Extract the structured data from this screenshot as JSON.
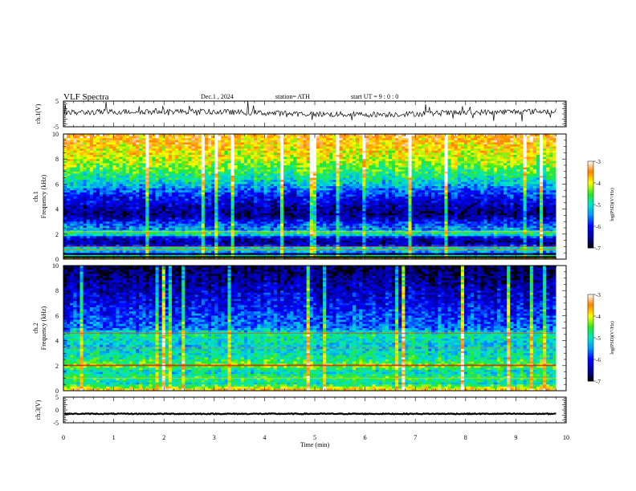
{
  "header": {
    "title": "VLF  Spectra",
    "date": "Dec.1  , 2024",
    "station": "station= ATH",
    "start_ut": "start  UT  =   9  : 0  : 0"
  },
  "chart_data": [
    {
      "type": "line",
      "name": "ch1-waveform",
      "ylabel": "ch.1(V)",
      "ylim": [
        -5,
        5
      ],
      "yticks": [
        5,
        -5
      ],
      "baseline": 0.4,
      "xlim": [
        0,
        10
      ],
      "data_end_min": 9.8
    },
    {
      "type": "heatmap",
      "name": "ch1-spectrogram",
      "ylabel_channel": "ch.1",
      "ylabel": "Frequency (kHz)",
      "ylim": [
        0,
        10
      ],
      "yticks": [
        0,
        2,
        4,
        6,
        8,
        10
      ],
      "xlim": [
        0,
        10
      ],
      "data_end_min": 9.8,
      "colorbar": {
        "label": "log(PSD)(V²/Hz)",
        "range": [
          -7,
          -3
        ],
        "ticks": [
          -3,
          -4,
          -5,
          -6,
          -7
        ]
      },
      "profile": [
        [
          0.0,
          -3.4
        ],
        [
          0.2,
          -4.2
        ],
        [
          0.35,
          -6.5
        ],
        [
          0.6,
          -5.3
        ],
        [
          0.9,
          -4.9
        ],
        [
          1.0,
          -5.8
        ],
        [
          1.3,
          -6.6
        ],
        [
          1.7,
          -6.2
        ],
        [
          1.9,
          -5.2
        ],
        [
          2.1,
          -4.8
        ],
        [
          2.4,
          -5.6
        ],
        [
          2.8,
          -5.7
        ],
        [
          3.2,
          -6.3
        ],
        [
          3.6,
          -6.6
        ],
        [
          4.2,
          -6.4
        ],
        [
          5.0,
          -6.0
        ],
        [
          6.0,
          -5.2
        ],
        [
          7.0,
          -4.6
        ],
        [
          8.0,
          -4.1
        ],
        [
          9.0,
          -3.8
        ],
        [
          10.0,
          -3.5
        ]
      ]
    },
    {
      "type": "heatmap",
      "name": "ch2-spectrogram",
      "ylabel_channel": "ch.2",
      "ylabel": "Frequency (kHz)",
      "ylim": [
        0,
        10
      ],
      "yticks": [
        0,
        2,
        4,
        6,
        8,
        10
      ],
      "xlim": [
        0,
        10
      ],
      "data_end_min": 9.8,
      "colorbar": {
        "label": "log(PSD)(V²/Hz)",
        "range": [
          -7,
          -3
        ],
        "ticks": [
          -3,
          -4,
          -5,
          -6,
          -7
        ]
      },
      "profile": [
        [
          0.0,
          -3.5
        ],
        [
          0.3,
          -4.3
        ],
        [
          0.6,
          -5.0
        ],
        [
          1.0,
          -4.6
        ],
        [
          1.5,
          -5.1
        ],
        [
          2.0,
          -4.3
        ],
        [
          2.5,
          -4.8
        ],
        [
          3.0,
          -5.0
        ],
        [
          3.5,
          -5.2
        ],
        [
          4.5,
          -4.8
        ],
        [
          5.0,
          -5.6
        ],
        [
          6.0,
          -5.8
        ],
        [
          7.0,
          -6.1
        ],
        [
          8.0,
          -6.3
        ],
        [
          9.0,
          -6.6
        ],
        [
          10.0,
          -6.8
        ]
      ]
    },
    {
      "type": "line",
      "name": "ch3-waveform",
      "ylabel": "ch.3(V)",
      "ylim": [
        -5,
        5
      ],
      "yticks": [
        5,
        0,
        -5
      ],
      "baseline": -1.5,
      "xlim": [
        0,
        10
      ],
      "data_end_min": 9.8
    }
  ],
  "xaxis": {
    "label": "Time  (min)",
    "ticks": [
      0,
      1,
      2,
      3,
      4,
      5,
      6,
      7,
      8,
      9,
      10
    ]
  }
}
